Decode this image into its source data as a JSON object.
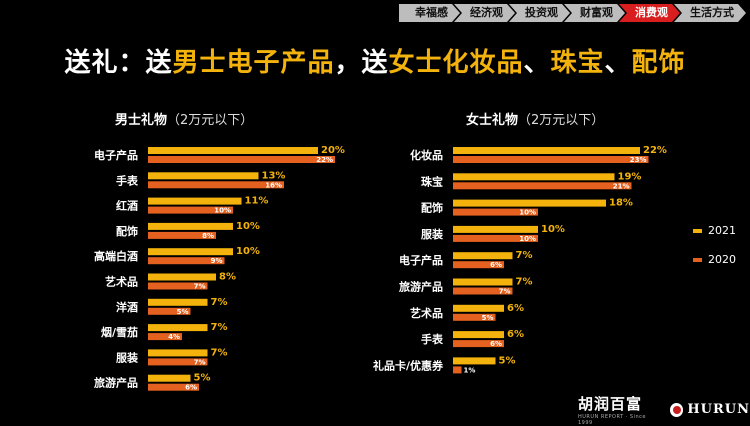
{
  "nav": [
    "幸福感",
    "经济观",
    "投资观",
    "财富观",
    "消费观",
    "生活方式"
  ],
  "nav_active": "消费观",
  "title_segments": [
    {
      "text": "送礼：送",
      "hl": false
    },
    {
      "text": "男士电子产品",
      "hl": true
    },
    {
      "text": "，送",
      "hl": false
    },
    {
      "text": "女士化妆品",
      "hl": true
    },
    {
      "text": "、",
      "hl": false
    },
    {
      "text": "珠宝",
      "hl": true
    },
    {
      "text": "、",
      "hl": false
    },
    {
      "text": "配饰",
      "hl": true
    }
  ],
  "men": {
    "subtitle": "男士礼物",
    "note": "（2万元以下）"
  },
  "women": {
    "subtitle": "女士礼物",
    "note": "（2万元以下）"
  },
  "legend": {
    "y2021": "2021",
    "y2020": "2020"
  },
  "colors": {
    "y2021": "#f3b30c",
    "y2020": "#e4611f",
    "highlight": "#f3b30c",
    "active_tab": "#d81e1e",
    "tab": "#bdbdbd"
  },
  "footer": {
    "logo_cn": "胡润百富",
    "logo_sub": "HURUN REPORT · Since 1999",
    "logo_en": "HURUN"
  },
  "chart_data": [
    {
      "type": "bar",
      "title": "男士礼物（2万元以下）",
      "orientation": "horizontal",
      "categories": [
        "电子产品",
        "手表",
        "红酒",
        "配饰",
        "高端白酒",
        "艺术品",
        "洋酒",
        "烟/雪茄",
        "服装",
        "旅游产品"
      ],
      "series": [
        {
          "name": "2021",
          "values": [
            20,
            13,
            11,
            10,
            10,
            8,
            7,
            7,
            7,
            5
          ],
          "labels": [
            "20%",
            "13%",
            "11%",
            "10%",
            "10%",
            "8%",
            "7%",
            "7%",
            "7%",
            "5%"
          ]
        },
        {
          "name": "2020",
          "values": [
            22,
            16,
            10,
            8,
            9,
            7,
            5,
            4,
            7,
            6
          ],
          "labels": [
            "22%",
            "16%",
            "10%",
            "8%",
            "9%",
            "7%",
            "5%",
            "4%",
            "7%",
            "6%"
          ]
        }
      ],
      "unit": "%"
    },
    {
      "type": "bar",
      "title": "女士礼物（2万元以下）",
      "orientation": "horizontal",
      "categories": [
        "化妆品",
        "珠宝",
        "配饰",
        "服装",
        "电子产品",
        "旅游产品",
        "艺术品",
        "手表",
        "礼品卡/优惠券"
      ],
      "series": [
        {
          "name": "2021",
          "values": [
            22,
            19,
            18,
            10,
            7,
            7,
            6,
            6,
            5
          ],
          "labels": [
            "22%",
            "19%",
            "18%",
            "10%",
            "7%",
            "7%",
            "6%",
            "6%",
            "5%"
          ]
        },
        {
          "name": "2020",
          "values": [
            23,
            21,
            10,
            10,
            6,
            7,
            5,
            6,
            1
          ],
          "labels": [
            "23%",
            "21%",
            "10%",
            "10%",
            "6%",
            "7%",
            "5%",
            "6%",
            "1%"
          ]
        }
      ],
      "unit": "%"
    }
  ]
}
